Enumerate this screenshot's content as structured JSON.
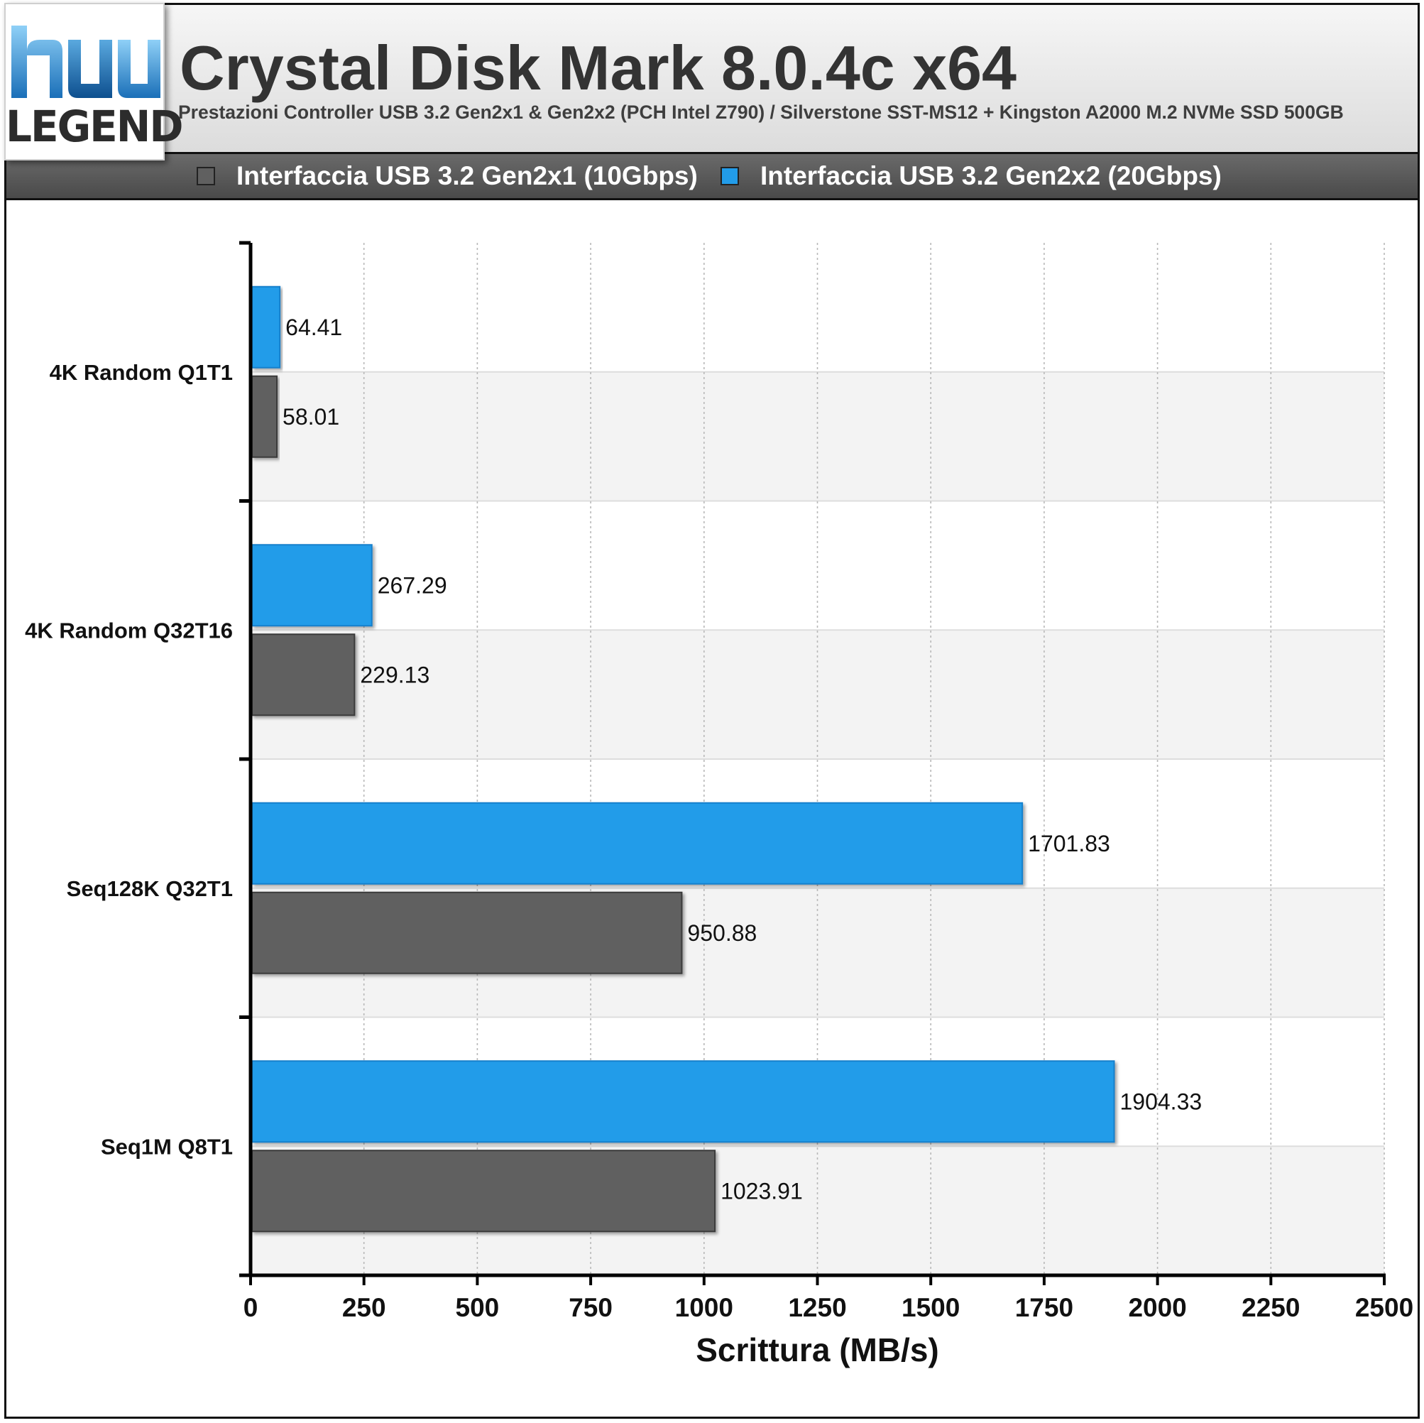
{
  "logo": {
    "text": "LEGEND"
  },
  "header": {
    "title": "Crystal Disk Mark 8.0.4c x64",
    "subtitle": "Prestazioni Controller USB 3.2 Gen2x1 & Gen2x2 (PCH Intel Z790) / Silverstone SST-MS12 + Kingston A2000 M.2 NVMe SSD 500GB"
  },
  "legend": [
    {
      "label": "Interfaccia USB 3.2 Gen2x1 (10Gbps)",
      "color": "#606060"
    },
    {
      "label": "Interfaccia USB 3.2 Gen2x2 (20Gbps)",
      "color": "#229ce9"
    }
  ],
  "chart_data": {
    "type": "bar",
    "orientation": "horizontal",
    "categories": [
      "4K Random Q1T1",
      "4K Random Q32T16",
      "Seq128K Q32T1",
      "Seq1M Q8T1"
    ],
    "series": [
      {
        "name": "Interfaccia USB 3.2 Gen2x2 (20Gbps)",
        "color": "#229ce9",
        "values": [
          64.41,
          267.29,
          1701.83,
          1904.33
        ]
      },
      {
        "name": "Interfaccia USB 3.2 Gen2x1 (10Gbps)",
        "color": "#606060",
        "values": [
          58.01,
          229.13,
          950.88,
          1023.91
        ]
      }
    ],
    "value_labels": [
      [
        "64.41",
        "267.29",
        "1701.83",
        "1904.33"
      ],
      [
        "58.01",
        "229.13",
        "950.88",
        "1023.91"
      ]
    ],
    "xlabel": "Scrittura (MB/s)",
    "ylabel": "",
    "xlim": [
      0,
      2500
    ],
    "ticks": [
      0,
      250,
      500,
      750,
      1000,
      1250,
      1500,
      1750,
      2000,
      2250,
      2500
    ],
    "tick_labels": [
      "0",
      "250",
      "500",
      "750",
      "1000",
      "1250",
      "1500",
      "1750",
      "2000",
      "2250",
      "2500"
    ],
    "grid": true,
    "legend_position": "top"
  }
}
